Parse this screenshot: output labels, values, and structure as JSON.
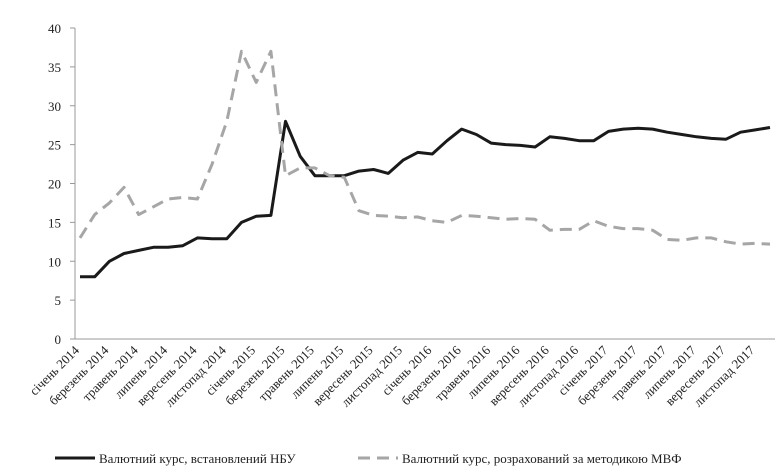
{
  "chart_data": {
    "type": "line",
    "categories": [
      "січень 2014",
      null,
      "березень 2014",
      null,
      "травень 2014",
      null,
      "липень 2014",
      null,
      "вересень 2014",
      null,
      "листопад 2014",
      null,
      "січень 2015",
      null,
      "березень 2015",
      null,
      "травень 2015",
      null,
      "липень 2015",
      null,
      "вересень 2015",
      null,
      "листопад 2015",
      null,
      "січень 2016",
      null,
      "березень 2016",
      null,
      "травень 2016",
      null,
      "липень 2016",
      null,
      "вересень 2016",
      null,
      "листопад 2016",
      null,
      "січень 2017",
      null,
      "березень 2017",
      null,
      "травень 2017",
      null,
      "липень 2017",
      null,
      "вересень 2017",
      null,
      "листопад 2017",
      null
    ],
    "series": [
      {
        "name": "Валютний курс, встановлений НБУ",
        "color": "#1a1a1a",
        "dash": false,
        "values": [
          8.0,
          8.0,
          10.0,
          11.0,
          11.4,
          11.8,
          11.8,
          12.0,
          13.0,
          12.9,
          12.9,
          15.0,
          15.8,
          15.9,
          28.0,
          23.5,
          21.0,
          21.0,
          21.0,
          21.6,
          21.8,
          21.3,
          23.0,
          24.0,
          23.8,
          25.5,
          27.0,
          26.3,
          25.2,
          25.0,
          24.9,
          24.7,
          26.0,
          25.8,
          25.5,
          25.5,
          26.7,
          27.0,
          27.1,
          27.0,
          26.6,
          26.3,
          26.0,
          25.8,
          25.7,
          26.6,
          26.9,
          27.2
        ]
      },
      {
        "name": "Валютний курс, розрахований за методикою МВФ",
        "color": "#a6a6a6",
        "dash": true,
        "values": [
          13.0,
          16.0,
          17.5,
          19.5,
          16.0,
          17.0,
          18.0,
          18.2,
          18.0,
          22.5,
          28.0,
          37.0,
          33.0,
          37.0,
          21.0,
          22.0,
          22.0,
          21.0,
          20.8,
          16.5,
          15.9,
          15.8,
          15.6,
          15.7,
          15.2,
          15.0,
          15.9,
          15.8,
          15.6,
          15.4,
          15.5,
          15.4,
          14.0,
          14.1,
          14.1,
          15.2,
          14.5,
          14.2,
          14.2,
          14.0,
          12.8,
          12.7,
          13.0,
          13.0,
          12.5,
          12.2,
          12.3,
          12.2
        ]
      }
    ],
    "ylim": [
      0,
      40
    ],
    "yticks": [
      0,
      5,
      10,
      15,
      20,
      25,
      30,
      35,
      40
    ],
    "grid": false,
    "legend": "bottom"
  }
}
